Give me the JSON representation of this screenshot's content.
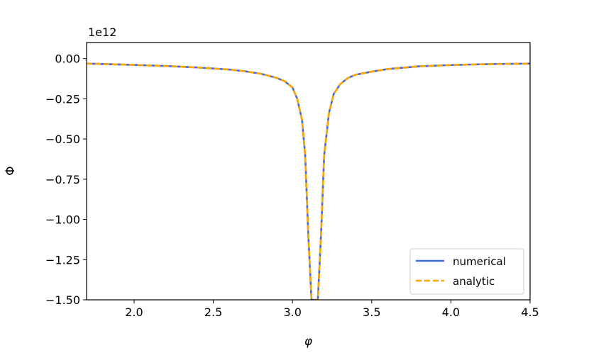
{
  "chart_data": {
    "type": "line",
    "xlabel": "φ",
    "ylabel": "Φ",
    "y_offset_label": "1e12",
    "xlim": [
      1.7,
      4.5
    ],
    "ylim": [
      -1.5,
      0.1
    ],
    "x_ticks": [
      2.0,
      2.5,
      3.0,
      3.5,
      4.0,
      4.5
    ],
    "x_tick_labels": [
      "2.0",
      "2.5",
      "3.0",
      "3.5",
      "4.0",
      "4.5"
    ],
    "y_ticks": [
      0.0,
      -0.25,
      -0.5,
      -0.75,
      -1.0,
      -1.25,
      -1.5
    ],
    "y_tick_labels": [
      "0.00",
      "−0.25",
      "−0.50",
      "−0.75",
      "−1.00",
      "−1.25",
      "−1.50"
    ],
    "grid": false,
    "legend_position": "lower-right",
    "series": [
      {
        "name": "numerical",
        "color": "#4169e1",
        "style": "solid",
        "x": [
          1.7,
          2.0,
          2.2,
          2.4,
          2.6,
          2.7,
          2.8,
          2.9,
          2.95,
          3.0,
          3.03,
          3.06,
          3.08,
          3.1,
          3.12,
          3.14,
          3.16,
          3.18,
          3.2,
          3.23,
          3.26,
          3.3,
          3.35,
          3.4,
          3.5,
          3.6,
          3.8,
          4.0,
          4.2,
          4.5
        ],
        "y": [
          -0.031,
          -0.039,
          -0.046,
          -0.055,
          -0.068,
          -0.079,
          -0.094,
          -0.12,
          -0.14,
          -0.18,
          -0.25,
          -0.38,
          -0.6,
          -1.1,
          -1.5,
          -1.5,
          -1.5,
          -1.1,
          -0.6,
          -0.34,
          -0.22,
          -0.16,
          -0.12,
          -0.1,
          -0.081,
          -0.065,
          -0.048,
          -0.04,
          -0.035,
          -0.031
        ]
      },
      {
        "name": "analytic",
        "color": "#ffa500",
        "style": "dashed",
        "x": [
          1.7,
          2.0,
          2.2,
          2.4,
          2.6,
          2.7,
          2.8,
          2.9,
          2.95,
          3.0,
          3.03,
          3.06,
          3.08,
          3.1,
          3.12,
          3.14,
          3.16,
          3.18,
          3.2,
          3.23,
          3.26,
          3.3,
          3.35,
          3.4,
          3.5,
          3.6,
          3.8,
          4.0,
          4.2,
          4.5
        ],
        "y": [
          -0.031,
          -0.039,
          -0.046,
          -0.055,
          -0.068,
          -0.079,
          -0.094,
          -0.12,
          -0.14,
          -0.18,
          -0.25,
          -0.38,
          -0.6,
          -1.1,
          -1.5,
          -1.5,
          -1.5,
          -1.1,
          -0.6,
          -0.34,
          -0.22,
          -0.16,
          -0.12,
          -0.1,
          -0.081,
          -0.065,
          -0.048,
          -0.04,
          -0.035,
          -0.031
        ]
      }
    ]
  }
}
